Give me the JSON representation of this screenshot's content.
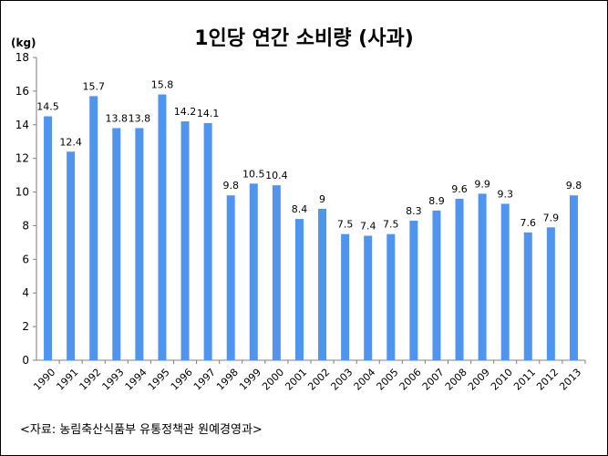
{
  "chart_data": {
    "type": "bar",
    "title": "1인당 연간 소비량 (사과)",
    "ylabel": "(kg)",
    "xlabel": "",
    "ylim": [
      0,
      18
    ],
    "yticks": [
      0,
      2,
      4,
      6,
      8,
      10,
      12,
      14,
      16,
      18
    ],
    "grid": false,
    "legend": "none",
    "bar_color": "#4F95F0",
    "categories": [
      "1990",
      "1991",
      "1992",
      "1993",
      "1994",
      "1995",
      "1996",
      "1997",
      "1998",
      "1999",
      "2000",
      "2001",
      "2002",
      "2003",
      "2004",
      "2005",
      "2006",
      "2007",
      "2008",
      "2009",
      "2010",
      "2011",
      "2012",
      "2013"
    ],
    "values": [
      14.5,
      12.4,
      15.7,
      13.8,
      13.8,
      15.8,
      14.2,
      14.1,
      9.8,
      10.5,
      10.4,
      8.4,
      9,
      7.5,
      7.4,
      7.5,
      8.3,
      8.9,
      9.6,
      9.9,
      9.3,
      7.6,
      7.9,
      9.8
    ]
  },
  "source_note": "<자료: 농림축산식품부  유통정책관 원예경영과>"
}
